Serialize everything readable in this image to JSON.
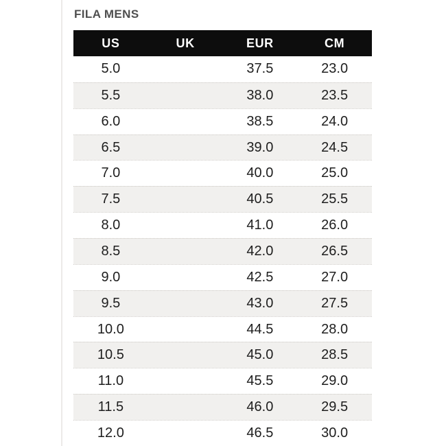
{
  "page": {
    "title": "FILA MENS"
  },
  "colors": {
    "header_bg": "#0d0d0d",
    "header_text": "#ffffff",
    "row_bg": "#ffffff",
    "row_alt_bg": "#f1f0ee",
    "cell_text": "#1e1e1e",
    "title_text": "#4f4f4f",
    "row_separator": "#ccc9c4",
    "left_edge_line": "#eceae8"
  },
  "chart_data": {
    "type": "table",
    "title": "FILA MENS",
    "columns": [
      "US",
      "UK",
      "EUR",
      "CM"
    ],
    "rows": [
      [
        "5.0",
        "",
        "37.5",
        "23.0"
      ],
      [
        "5.5",
        "",
        "38.0",
        "23.5"
      ],
      [
        "6.0",
        "",
        "38.5",
        "24.0"
      ],
      [
        "6.5",
        "",
        "39.0",
        "24.5"
      ],
      [
        "7.0",
        "",
        "40.0",
        "25.0"
      ],
      [
        "7.5",
        "",
        "40.5",
        "25.5"
      ],
      [
        "8.0",
        "",
        "41.0",
        "26.0"
      ],
      [
        "8.5",
        "",
        "42.0",
        "26.5"
      ],
      [
        "9.0",
        "",
        "42.5",
        "27.0"
      ],
      [
        "9.5",
        "",
        "43.0",
        "27.5"
      ],
      [
        "10.0",
        "",
        "44.5",
        "28.0"
      ],
      [
        "10.5",
        "",
        "45.0",
        "28.5"
      ],
      [
        "11.0",
        "",
        "45.5",
        "29.0"
      ],
      [
        "11.5",
        "",
        "46.0",
        "29.5"
      ],
      [
        "12.0",
        "",
        "46.5",
        "30.0"
      ]
    ]
  }
}
